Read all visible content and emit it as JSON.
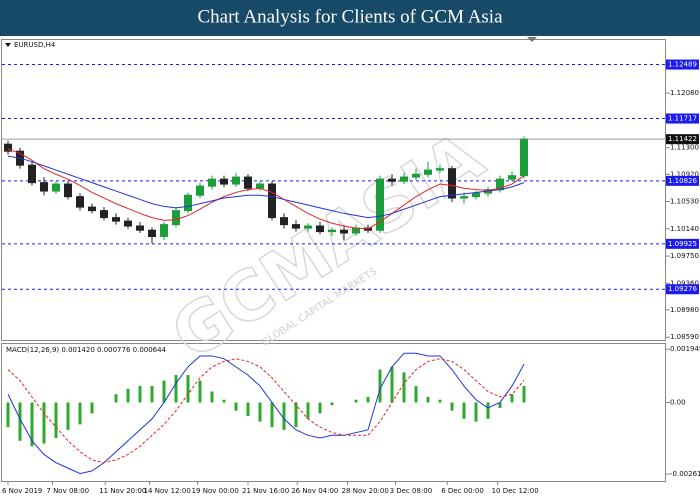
{
  "header": {
    "title": "Chart Analysis for Clients of GCM Asia"
  },
  "watermark": {
    "text": "GCMASIA",
    "subtext": "GLOBAL CAPITAL MARKETS"
  },
  "chart_data": [
    {
      "type": "candlestick",
      "label": "EURUSD,H4",
      "up_color": "#1a9e3a",
      "down_color": "#222222",
      "open": [
        1.1135,
        1.1125,
        1.1105,
        1.108,
        1.1068,
        1.1078,
        1.106,
        1.1045,
        1.104,
        1.103,
        1.1025,
        1.1018,
        1.1012,
        1.1003,
        1.102,
        1.104,
        1.1062,
        1.1075,
        1.1085,
        1.1078,
        1.1088,
        1.1072,
        1.1078,
        1.103,
        1.102,
        1.1015,
        1.1018,
        1.101,
        1.1012,
        1.1008,
        1.1015,
        1.1012,
        1.1085,
        1.1082,
        1.1088,
        1.1092,
        1.1098,
        1.11,
        1.1058,
        1.106,
        1.1065,
        1.107,
        1.1085,
        1.109
      ],
      "high": [
        1.114,
        1.113,
        1.111,
        1.1088,
        1.1082,
        1.1082,
        1.1065,
        1.105,
        1.1045,
        1.1036,
        1.103,
        1.1024,
        1.1016,
        1.1024,
        1.1045,
        1.1066,
        1.108,
        1.109,
        1.109,
        1.1094,
        1.1092,
        1.1082,
        1.1082,
        1.1036,
        1.1026,
        1.1022,
        1.1024,
        1.1016,
        1.1018,
        1.102,
        1.102,
        1.109,
        1.1092,
        1.1094,
        1.11,
        1.111,
        1.1106,
        1.1104,
        1.1066,
        1.1068,
        1.1074,
        1.109,
        1.1096,
        1.1146
      ],
      "low": [
        1.112,
        1.11,
        1.1076,
        1.1062,
        1.1064,
        1.1056,
        1.104,
        1.1036,
        1.1026,
        1.102,
        1.1014,
        1.1008,
        1.0993,
        1.0998,
        1.1016,
        1.1036,
        1.1058,
        1.107,
        1.1074,
        1.1074,
        1.1068,
        1.1068,
        1.1026,
        1.1014,
        1.101,
        1.101,
        1.1006,
        1.1004,
        1.0998,
        1.1004,
        1.1008,
        1.1008,
        1.1076,
        1.1078,
        1.1084,
        1.1088,
        1.1094,
        1.1052,
        1.105,
        1.1056,
        1.106,
        1.1066,
        1.1082,
        1.1086
      ],
      "close": [
        1.1125,
        1.1105,
        1.108,
        1.1068,
        1.1078,
        1.106,
        1.1045,
        1.104,
        1.103,
        1.1025,
        1.1018,
        1.1012,
        1.1003,
        1.102,
        1.104,
        1.1062,
        1.1075,
        1.1085,
        1.1078,
        1.1088,
        1.1072,
        1.1078,
        1.103,
        1.102,
        1.1015,
        1.1018,
        1.101,
        1.1012,
        1.1008,
        1.1015,
        1.1012,
        1.1085,
        1.1082,
        1.1088,
        1.1092,
        1.1098,
        1.11,
        1.1058,
        1.106,
        1.1065,
        1.107,
        1.1085,
        1.109,
        1.1142
      ],
      "overlays": [
        {
          "color": "#e3262a",
          "values": [
            1.1128,
            1.1122,
            1.1112,
            1.11,
            1.1092,
            1.1085,
            1.1076,
            1.1066,
            1.1058,
            1.105,
            1.1043,
            1.1036,
            1.103,
            1.1026,
            1.1027,
            1.1033,
            1.1042,
            1.1052,
            1.106,
            1.1066,
            1.107,
            1.1072,
            1.1066,
            1.1056,
            1.1046,
            1.1036,
            1.1028,
            1.1022,
            1.1018,
            1.1015,
            1.1014,
            1.1024,
            1.1036,
            1.1048,
            1.106,
            1.107,
            1.1078,
            1.1076,
            1.1072,
            1.107,
            1.1069,
            1.1072,
            1.1078,
            1.109
          ]
        },
        {
          "color": "#2035d8",
          "values": [
            1.1118,
            1.1115,
            1.111,
            1.1104,
            1.1098,
            1.1092,
            1.1086,
            1.108,
            1.1074,
            1.1068,
            1.1062,
            1.1056,
            1.105,
            1.1046,
            1.1044,
            1.1046,
            1.105,
            1.1054,
            1.1058,
            1.106,
            1.1062,
            1.1062,
            1.106,
            1.1056,
            1.1052,
            1.1048,
            1.1044,
            1.104,
            1.1036,
            1.1033,
            1.103,
            1.1032,
            1.1036,
            1.1042,
            1.1048,
            1.1054,
            1.106,
            1.1062,
            1.1064,
            1.1066,
            1.1068,
            1.107,
            1.1074,
            1.108
          ]
        }
      ],
      "levels": [
        1.12489,
        1.11717,
        1.10826,
        1.09925,
        1.09276
      ],
      "level_color": "#1a1aee",
      "current_price": 1.11422,
      "ylim": [
        1.0855,
        1.1284
      ],
      "yticks": [
        {
          "value": 1.1208,
          "label": "1.12080"
        },
        {
          "value": 1.113,
          "label": "1.11300"
        },
        {
          "value": 1.1092,
          "label": "1.10920"
        },
        {
          "value": 1.1053,
          "label": "1.10530"
        },
        {
          "value": 1.1014,
          "label": "1.10140"
        },
        {
          "value": 1.0975,
          "label": "1.09750"
        },
        {
          "value": 1.0936,
          "label": "1.09360"
        },
        {
          "value": 1.0898,
          "label": "1.08980"
        },
        {
          "value": 1.0859,
          "label": "1.08590"
        }
      ]
    },
    {
      "type": "macd",
      "label": "MACD(12,26,9) 0.001420 0.000776 0.000644",
      "histogram_color": "#2ea82e",
      "macd_color": "#2035d8",
      "signal_color": "#e3262a",
      "histogram": [
        -0.0009,
        -0.0014,
        -0.0016,
        -0.0015,
        -0.0013,
        -0.001,
        -0.0008,
        -0.0004,
        0.0,
        0.0003,
        0.0005,
        0.0006,
        0.0006,
        0.0008,
        0.001,
        0.001,
        0.0008,
        0.0004,
        0.0001,
        -0.0003,
        -0.0005,
        -0.0007,
        -0.0009,
        -0.001,
        -0.0009,
        -0.0006,
        -0.0004,
        -0.0001,
        0.0,
        0.0001,
        0.0002,
        0.0012,
        0.0013,
        0.0011,
        0.0006,
        0.0002,
        0.0001,
        -0.0003,
        -0.0006,
        -0.0007,
        -0.0006,
        -0.0002,
        0.0003,
        0.0006
      ],
      "macd": [
        0.0003,
        -0.0006,
        -0.0014,
        -0.0019,
        -0.0022,
        -0.0024,
        -0.0026,
        -0.0025,
        -0.0022,
        -0.0018,
        -0.0014,
        -0.001,
        -0.0006,
        0.0,
        0.0007,
        0.0013,
        0.0017,
        0.0017,
        0.0016,
        0.0013,
        0.001,
        0.0006,
        0.0,
        -0.0006,
        -0.001,
        -0.0012,
        -0.0013,
        -0.0012,
        -0.0012,
        -0.0011,
        -0.001,
        0.0005,
        0.0013,
        0.0018,
        0.0018,
        0.0017,
        0.0017,
        0.0012,
        0.0006,
        0.0001,
        -0.0002,
        0.0,
        0.0006,
        0.0014
      ],
      "signal": [
        0.0012,
        0.0008,
        0.0002,
        -0.0004,
        -0.0009,
        -0.0014,
        -0.0018,
        -0.0021,
        -0.0022,
        -0.0021,
        -0.0019,
        -0.0016,
        -0.0012,
        -0.0008,
        -0.0003,
        0.0003,
        0.0009,
        0.0013,
        0.0015,
        0.0016,
        0.0015,
        0.0013,
        0.0009,
        0.0004,
        -0.0001,
        -0.0006,
        -0.0009,
        -0.0011,
        -0.0012,
        -0.0012,
        -0.0012,
        -0.0007,
        0.0,
        0.0007,
        0.0012,
        0.0015,
        0.0016,
        0.0015,
        0.0012,
        0.0008,
        0.0004,
        0.0002,
        0.0003,
        0.0008
      ],
      "ylim": [
        -0.00287,
        0.0021
      ],
      "yticks": [
        0.001949,
        {
          "value": 0,
          "label": "0.00"
        },
        -0.002619
      ],
      "xticks": [
        {
          "value": 0,
          "label": "6 Nov 2019"
        },
        {
          "value": 3.7,
          "label": "7 Nov 08:00"
        },
        {
          "value": 8.1,
          "label": "11 Nov 20:00"
        },
        {
          "value": 11.8,
          "label": "14 Nov 12:00"
        },
        {
          "value": 15.8,
          "label": "19 Nov 00:00"
        },
        {
          "value": 20,
          "label": "21 Nov 16:00"
        },
        {
          "value": 24.1,
          "label": "26 Nov 04:00"
        },
        {
          "value": 28.3,
          "label": "28 Nov 20:00"
        },
        {
          "value": 32.3,
          "label": "3 Dec 08:00"
        },
        {
          "value": 36.6,
          "label": "6 Dec 00:00"
        },
        {
          "value": 40.8,
          "label": "10 Dec 12:00"
        }
      ]
    }
  ]
}
